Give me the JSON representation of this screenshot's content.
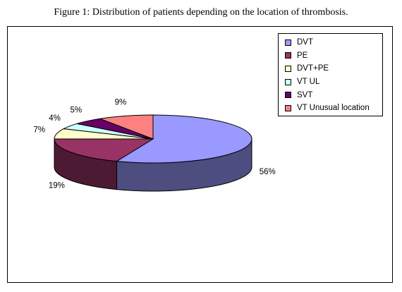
{
  "figure": {
    "caption": "Figure 1: Distribution of patients depending on the location of thrombosis."
  },
  "chart_data": {
    "type": "pie",
    "style": "3d-exploded-ellipse",
    "title": "Figure 1: Distribution of patients depending on the location of thrombosis.",
    "categories": [
      "DVT",
      "PE",
      "DVT+PE",
      "VT UL",
      "SVT",
      "VT Unusual location"
    ],
    "values": [
      56,
      19,
      7,
      4,
      5,
      9
    ],
    "labels": [
      "56%",
      "19%",
      "7%",
      "4%",
      "5%",
      "9%"
    ],
    "unit": "%",
    "legend_position": "top-right",
    "colors": [
      "#9999FF",
      "#993366",
      "#FFFFCC",
      "#CCFFFF",
      "#660066",
      "#FF8080"
    ],
    "side_colors": [
      "#4D4D80",
      "#4D1A33",
      "#808066",
      "#668080",
      "#330033",
      "#804040"
    ]
  }
}
